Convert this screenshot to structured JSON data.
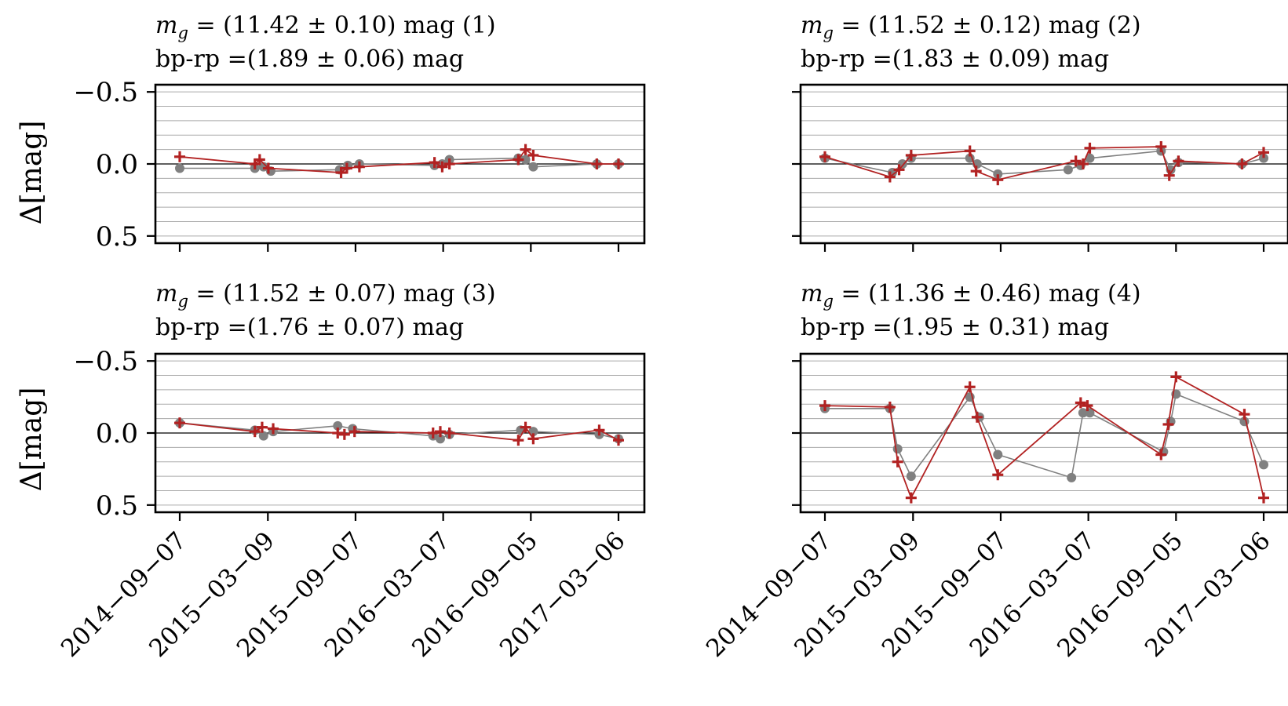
{
  "figure": {
    "ylabel": "Δ[mag]",
    "y_ticks": [
      "−0.5",
      "0.0",
      "0.5"
    ],
    "x_tick_labels": [
      "2014−09−07",
      "2015−03−09",
      "2015−09−07",
      "2016−03−07",
      "2016−09−05",
      "2017−03−06"
    ]
  },
  "colors": {
    "gaia_series": "#808080",
    "model_series": "#b22222",
    "grid": "#aaaaaa",
    "zero_line": "#000000"
  },
  "panels": [
    {
      "title_line1": "m_g = (11.42 ± 0.10) mag (1)",
      "title_line2": "bp-rp =(1.89 ± 0.06) mag"
    },
    {
      "title_line1": "m_g = (11.52 ± 0.12) mag (2)",
      "title_line2": "bp-rp =(1.83 ± 0.09) mag"
    },
    {
      "title_line1": "m_g = (11.52 ± 0.07) mag (3)",
      "title_line2": "bp-rp =(1.76 ± 0.07) mag"
    },
    {
      "title_line1": "m_g = (11.36 ± 0.46) mag (4)",
      "title_line2": "bp-rp =(1.95 ± 0.31) mag"
    }
  ],
  "chart_data": [
    {
      "type": "line",
      "panel": 1,
      "title": "m_g = (11.42 ± 0.10) mag (1) / bp-rp =(1.89 ± 0.06) mag",
      "ylabel": "Δ[mag]",
      "ylim": [
        0.55,
        -0.55
      ],
      "y_inverted": true,
      "grid": true,
      "x_ticks": [
        "2014-09-07",
        "2015-03-09",
        "2015-09-07",
        "2016-03-07",
        "2016-09-05",
        "2017-03-06"
      ],
      "series": [
        {
          "marker": "circle",
          "x": [
            "2014-09-07",
            "2015-02-10",
            "2015-02-28",
            "2015-03-15",
            "2015-08-05",
            "2015-08-22",
            "2015-09-15",
            "2016-02-18",
            "2016-03-05",
            "2016-03-20",
            "2016-08-10",
            "2016-08-25",
            "2016-09-10",
            "2017-01-20",
            "2017-03-06"
          ],
          "y": [
            0.03,
            0.03,
            0.02,
            0.05,
            0.04,
            0.01,
            0.0,
            0.01,
            0.0,
            -0.03,
            -0.04,
            -0.03,
            0.02,
            0.0,
            0.0
          ]
        },
        {
          "marker": "plus",
          "x": [
            "2014-09-07",
            "2015-02-10",
            "2015-02-20",
            "2015-03-10",
            "2015-08-08",
            "2015-08-20",
            "2015-09-15",
            "2016-02-18",
            "2016-03-05",
            "2016-03-20",
            "2016-08-10",
            "2016-08-25",
            "2016-09-10",
            "2017-01-20",
            "2017-03-06"
          ],
          "y": [
            -0.05,
            0.0,
            -0.03,
            0.03,
            0.06,
            0.03,
            0.02,
            -0.01,
            0.02,
            0.0,
            -0.03,
            -0.1,
            -0.06,
            0.0,
            0.0
          ]
        }
      ]
    },
    {
      "type": "line",
      "panel": 2,
      "title": "m_g = (11.52 ± 0.12) mag (2) / bp-rp =(1.83 ± 0.09) mag",
      "ylim": [
        0.55,
        -0.55
      ],
      "y_inverted": true,
      "grid": true,
      "x_ticks": [
        "2014-09-07",
        "2015-03-09",
        "2015-09-07",
        "2016-03-07",
        "2016-09-05",
        "2017-03-06"
      ],
      "series": [
        {
          "marker": "circle",
          "x": [
            "2014-09-07",
            "2015-01-25",
            "2015-02-15",
            "2015-03-05",
            "2015-07-05",
            "2015-07-20",
            "2015-09-01",
            "2016-01-25",
            "2016-02-20",
            "2016-03-10",
            "2016-08-05",
            "2016-08-25",
            "2016-09-10",
            "2017-01-20",
            "2017-03-06"
          ],
          "y": [
            -0.04,
            0.06,
            0.0,
            -0.04,
            -0.04,
            0.0,
            0.07,
            0.04,
            0.01,
            -0.04,
            -0.09,
            0.04,
            -0.01,
            0.0,
            -0.04
          ]
        },
        {
          "marker": "plus",
          "x": [
            "2014-09-07",
            "2015-01-20",
            "2015-02-08",
            "2015-03-05",
            "2015-07-05",
            "2015-07-18",
            "2015-09-01",
            "2016-02-10",
            "2016-02-25",
            "2016-03-10",
            "2016-08-05",
            "2016-08-22",
            "2016-09-10",
            "2017-01-20",
            "2017-03-06"
          ],
          "y": [
            -0.05,
            0.09,
            0.04,
            -0.06,
            -0.09,
            0.05,
            0.11,
            -0.02,
            0.0,
            -0.11,
            -0.12,
            0.08,
            -0.02,
            0.0,
            -0.08
          ]
        }
      ]
    },
    {
      "type": "line",
      "panel": 3,
      "title": "m_g = (11.52 ± 0.07) mag (3) / bp-rp =(1.76 ± 0.07) mag",
      "ylabel": "Δ[mag]",
      "ylim": [
        0.55,
        -0.55
      ],
      "y_inverted": true,
      "grid": true,
      "x_ticks": [
        "2014-09-07",
        "2015-03-09",
        "2015-09-07",
        "2016-03-07",
        "2016-09-05",
        "2017-03-06"
      ],
      "series": [
        {
          "marker": "circle",
          "x": [
            "2014-09-07",
            "2015-02-10",
            "2015-02-28",
            "2015-03-20",
            "2015-08-01",
            "2015-09-01",
            "2016-02-15",
            "2016-03-01",
            "2016-03-20",
            "2016-08-15",
            "2016-09-10",
            "2017-01-25",
            "2017-03-06"
          ],
          "y": [
            -0.07,
            -0.02,
            0.02,
            -0.01,
            -0.05,
            -0.03,
            0.02,
            0.04,
            0.01,
            -0.02,
            -0.01,
            0.01,
            0.04
          ]
        },
        {
          "marker": "plus",
          "x": [
            "2014-09-07",
            "2015-02-10",
            "2015-02-25",
            "2015-03-20",
            "2015-08-01",
            "2015-08-15",
            "2015-09-05",
            "2016-02-15",
            "2016-03-01",
            "2016-03-20",
            "2016-08-10",
            "2016-08-25",
            "2016-09-10",
            "2017-01-25",
            "2017-03-06"
          ],
          "y": [
            -0.07,
            -0.01,
            -0.04,
            -0.03,
            0.0,
            0.01,
            -0.01,
            0.0,
            -0.01,
            0.0,
            0.05,
            -0.04,
            0.04,
            -0.02,
            0.05
          ]
        }
      ]
    },
    {
      "type": "line",
      "panel": 4,
      "title": "m_g = (11.36 ± 0.46) mag (4) / bp-rp =(1.95 ± 0.31) mag",
      "ylim": [
        0.55,
        -0.55
      ],
      "y_inverted": true,
      "grid": true,
      "x_ticks": [
        "2014-09-07",
        "2015-03-09",
        "2015-09-07",
        "2016-03-07",
        "2016-09-05",
        "2017-03-06"
      ],
      "series": [
        {
          "marker": "circle",
          "x": [
            "2014-09-07",
            "2015-01-20",
            "2015-02-05",
            "2015-03-05",
            "2015-07-05",
            "2015-07-25",
            "2015-09-01",
            "2016-02-01",
            "2016-02-25",
            "2016-03-10",
            "2016-08-10",
            "2016-08-25",
            "2016-09-05",
            "2017-01-25",
            "2017-03-06"
          ],
          "y": [
            -0.17,
            -0.17,
            0.11,
            0.3,
            -0.25,
            -0.11,
            0.15,
            0.31,
            -0.14,
            -0.14,
            0.13,
            -0.08,
            -0.27,
            -0.08,
            0.22
          ]
        },
        {
          "marker": "plus",
          "x": [
            "2014-09-07",
            "2015-01-20",
            "2015-02-05",
            "2015-03-05",
            "2015-07-05",
            "2015-07-20",
            "2015-09-01",
            "2016-02-20",
            "2016-03-05",
            "2016-08-05",
            "2016-08-20",
            "2016-09-05",
            "2017-01-25",
            "2017-03-06"
          ],
          "y": [
            -0.19,
            -0.18,
            0.2,
            0.45,
            -0.32,
            -0.11,
            0.29,
            -0.21,
            -0.19,
            0.15,
            -0.06,
            -0.39,
            -0.13,
            0.45
          ]
        }
      ]
    }
  ]
}
